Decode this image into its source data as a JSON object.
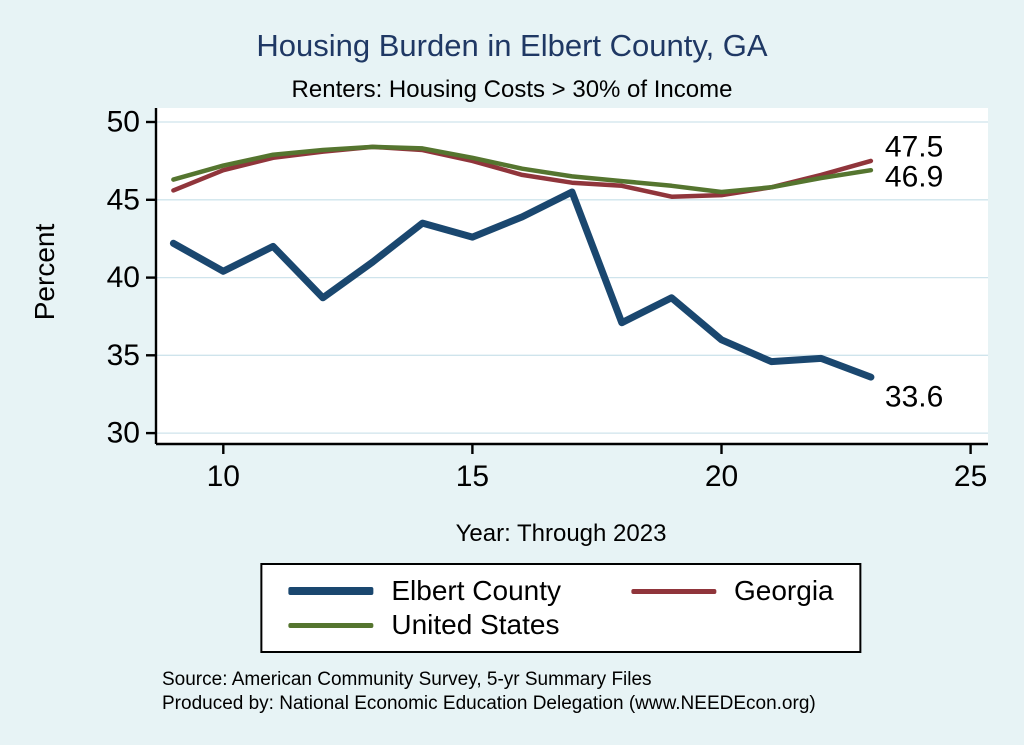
{
  "colors": {
    "background": "#e7f3f5",
    "title": "#1f3864",
    "grid": "#cfe4ec",
    "axis": "#000000",
    "elbert": "#1a476f",
    "georgia": "#90353b",
    "us": "#55752f"
  },
  "chart_data": {
    "type": "line",
    "title": "Housing Burden in Elbert County, GA",
    "subtitle": "Renters: Housing Costs > 30% of Income",
    "xlabel": "Year: Through 2023",
    "ylabel": "Percent",
    "x": [
      9,
      10,
      11,
      12,
      13,
      14,
      15,
      16,
      17,
      18,
      19,
      20,
      21,
      22,
      23
    ],
    "series": [
      {
        "name": "Elbert County",
        "color_key": "elbert",
        "end_label": "33.6",
        "values": [
          42.2,
          40.4,
          42.0,
          38.7,
          41.0,
          43.5,
          42.6,
          43.9,
          45.5,
          37.1,
          38.7,
          36.0,
          34.6,
          34.8,
          33.6
        ]
      },
      {
        "name": "Georgia",
        "color_key": "georgia",
        "end_label": "47.5",
        "values": [
          45.6,
          46.9,
          47.7,
          48.1,
          48.4,
          48.2,
          47.5,
          46.6,
          46.1,
          45.9,
          45.2,
          45.3,
          45.8,
          46.6,
          47.5
        ]
      },
      {
        "name": "United States",
        "color_key": "us",
        "end_label": "46.9",
        "values": [
          46.3,
          47.2,
          47.9,
          48.2,
          48.4,
          48.3,
          47.7,
          47.0,
          46.5,
          46.2,
          45.9,
          45.5,
          45.8,
          46.4,
          46.9
        ]
      }
    ],
    "xticks": [
      10,
      15,
      20,
      25
    ],
    "yticks": [
      30,
      35,
      40,
      45,
      50
    ],
    "xlim": [
      8.65,
      25.35
    ],
    "ylim": [
      29.3,
      50.9
    ],
    "grid": true,
    "legend_position": "bottom"
  },
  "legend": {
    "items": [
      {
        "label": "Elbert County"
      },
      {
        "label": "Georgia"
      },
      {
        "label": "United States"
      }
    ]
  },
  "footer": {
    "source": "Source: American Community Survey, 5-yr Summary Files",
    "produced_by": "Produced by: National Economic Education Delegation (www.NEEDEcon.org)"
  }
}
